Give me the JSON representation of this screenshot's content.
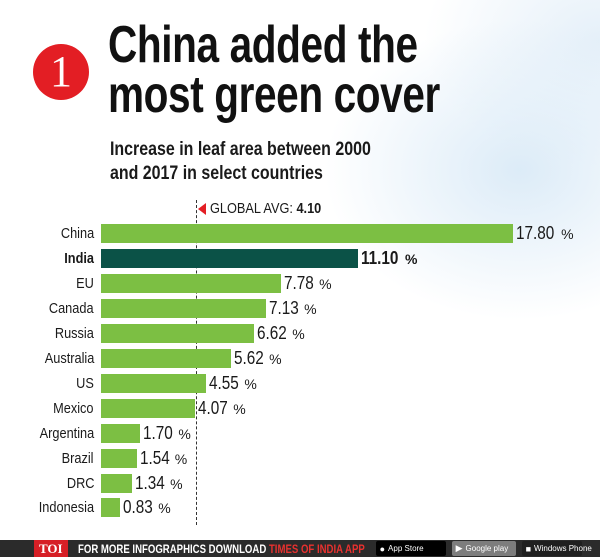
{
  "header": {
    "number_badge": "1",
    "title_line1": "China added the",
    "title_line2": "most green cover",
    "subtitle_line1": "Increase in leaf area between 2000",
    "subtitle_line2": "and 2017 in select countries"
  },
  "global_avg": {
    "label": "GLOBAL AVG: ",
    "value": "4.10"
  },
  "rows": [
    {
      "label": "China",
      "value": "17.80",
      "pct": "%"
    },
    {
      "label": "India",
      "value": "11.10",
      "pct": "%"
    },
    {
      "label": "EU",
      "value": "7.78",
      "pct": "%"
    },
    {
      "label": "Canada",
      "value": "7.13",
      "pct": "%"
    },
    {
      "label": "Russia",
      "value": "6.62",
      "pct": "%"
    },
    {
      "label": "Australia",
      "value": "5.62",
      "pct": "%"
    },
    {
      "label": "US",
      "value": "4.55",
      "pct": "%"
    },
    {
      "label": "Mexico",
      "value": "4.07",
      "pct": "%"
    },
    {
      "label": "Argentina",
      "value": "1.70",
      "pct": "%"
    },
    {
      "label": "Brazil",
      "value": "1.54",
      "pct": "%"
    },
    {
      "label": "DRC",
      "value": "1.34",
      "pct": "%"
    },
    {
      "label": "Indonesia",
      "value": "0.83",
      "pct": "%"
    }
  ],
  "footer": {
    "logo": "TOI",
    "text": "FOR MORE  INFOGRAPHICS DOWNLOAD ",
    "brand": "TIMES OF INDIA  APP",
    "apple_store": "App Store",
    "google_play": "Google play",
    "windows": "Windows Phone"
  },
  "colors": {
    "bar_default": "#7cbf43",
    "bar_highlight": "#0b5247",
    "accent_red": "#e31e24"
  },
  "chart_data": {
    "type": "bar",
    "orientation": "horizontal",
    "title": "China added the most green cover",
    "subtitle": "Increase in leaf area between 2000 and 2017 in select countries",
    "categories": [
      "China",
      "India",
      "EU",
      "Canada",
      "Russia",
      "Australia",
      "US",
      "Mexico",
      "Argentina",
      "Brazil",
      "DRC",
      "Indonesia"
    ],
    "values": [
      17.8,
      11.1,
      7.78,
      7.13,
      6.62,
      5.62,
      4.55,
      4.07,
      1.7,
      1.54,
      1.34,
      0.83
    ],
    "unit": "%",
    "highlight": "India",
    "reference_line": {
      "label": "GLOBAL AVG",
      "value": 4.1
    },
    "xlabel": "",
    "ylabel": "",
    "grid": false
  }
}
